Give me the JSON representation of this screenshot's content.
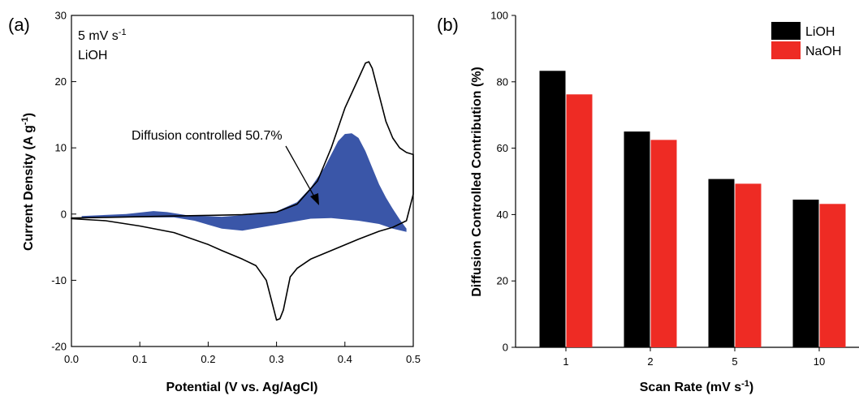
{
  "chart_data": [
    {
      "panel_label": "(a)",
      "type": "line",
      "xlabel": "Potential (V vs. Ag/AgCl)",
      "ylabel": "Current Density (A g",
      "ylabel_sup": "-1",
      "ylabel_close": ")",
      "xlim": [
        0.0,
        0.5
      ],
      "ylim": [
        -20,
        30
      ],
      "xticks": [
        "0.0",
        "0.1",
        "0.2",
        "0.3",
        "0.4",
        "0.5"
      ],
      "yticks": [
        "-20",
        "-10",
        "0",
        "10",
        "20",
        "30"
      ],
      "annotation_rate": "5 mV s",
      "annotation_rate_sup": "-1",
      "annotation_electrolyte": "LiOH",
      "annotation_diffusion": "Diffusion controlled 50.7%",
      "fill_color": "#3a56a8",
      "series": [
        {
          "style": "total-cv",
          "upper": [
            [
              0.0,
              -0.6
            ],
            [
              0.05,
              -0.5
            ],
            [
              0.1,
              -0.4
            ],
            [
              0.15,
              -0.3
            ],
            [
              0.2,
              -0.2
            ],
            [
              0.25,
              -0.1
            ],
            [
              0.3,
              0.3
            ],
            [
              0.33,
              1.5
            ],
            [
              0.36,
              5
            ],
            [
              0.38,
              10
            ],
            [
              0.4,
              16
            ],
            [
              0.42,
              20.5
            ],
            [
              0.43,
              22.8
            ],
            [
              0.435,
              23
            ],
            [
              0.44,
              22
            ],
            [
              0.45,
              18
            ],
            [
              0.46,
              14
            ],
            [
              0.47,
              11.5
            ],
            [
              0.48,
              10
            ],
            [
              0.49,
              9.3
            ],
            [
              0.5,
              9.0
            ]
          ],
          "lower": [
            [
              0.5,
              9.0
            ],
            [
              0.5,
              3
            ],
            [
              0.49,
              -1
            ],
            [
              0.47,
              -2
            ],
            [
              0.45,
              -2.6
            ],
            [
              0.42,
              -3.8
            ],
            [
              0.38,
              -5.5
            ],
            [
              0.35,
              -6.8
            ],
            [
              0.33,
              -8.2
            ],
            [
              0.32,
              -9.5
            ],
            [
              0.315,
              -12
            ],
            [
              0.31,
              -14.5
            ],
            [
              0.305,
              -15.8
            ],
            [
              0.3,
              -16
            ],
            [
              0.295,
              -14
            ],
            [
              0.285,
              -10
            ],
            [
              0.27,
              -7.8
            ],
            [
              0.25,
              -6.8
            ],
            [
              0.22,
              -5.5
            ],
            [
              0.2,
              -4.6
            ],
            [
              0.15,
              -2.8
            ],
            [
              0.1,
              -1.8
            ],
            [
              0.05,
              -1.0
            ],
            [
              0.0,
              -0.7
            ]
          ]
        },
        {
          "style": "diffusion-fill",
          "upper": [
            [
              0.015,
              -0.3
            ],
            [
              0.08,
              0.0
            ],
            [
              0.12,
              0.45
            ],
            [
              0.14,
              0.3
            ],
            [
              0.17,
              -0.2
            ],
            [
              0.22,
              -0.4
            ],
            [
              0.26,
              -0.1
            ],
            [
              0.3,
              0.4
            ],
            [
              0.33,
              1.8
            ],
            [
              0.35,
              4.0
            ],
            [
              0.37,
              7.0
            ],
            [
              0.39,
              11.0
            ],
            [
              0.4,
              12.1
            ],
            [
              0.41,
              12.2
            ],
            [
              0.42,
              11.5
            ],
            [
              0.43,
              9.5
            ],
            [
              0.44,
              7.0
            ],
            [
              0.45,
              4.5
            ],
            [
              0.46,
              2.5
            ],
            [
              0.47,
              0.8
            ],
            [
              0.48,
              -0.8
            ],
            [
              0.49,
              -2.2
            ]
          ],
          "lower": [
            [
              0.49,
              -2.7
            ],
            [
              0.47,
              -2.2
            ],
            [
              0.45,
              -1.5
            ],
            [
              0.42,
              -1.0
            ],
            [
              0.38,
              -0.6
            ],
            [
              0.35,
              -0.7
            ],
            [
              0.3,
              -1.6
            ],
            [
              0.25,
              -2.5
            ],
            [
              0.22,
              -2.2
            ],
            [
              0.18,
              -1.0
            ],
            [
              0.15,
              -0.5
            ],
            [
              0.1,
              -0.5
            ],
            [
              0.05,
              -0.55
            ],
            [
              0.015,
              -0.6
            ]
          ]
        }
      ]
    },
    {
      "panel_label": "(b)",
      "type": "bar",
      "xlabel": "Scan Rate (mV s",
      "xlabel_sup": "-1",
      "xlabel_close": ")",
      "ylabel": "Diffusion Controlled Contribution (%)",
      "ylim": [
        0,
        100
      ],
      "yticks": [
        "0",
        "20",
        "40",
        "60",
        "80",
        "100"
      ],
      "categories": [
        "1",
        "2",
        "5",
        "10"
      ],
      "series": [
        {
          "name": "LiOH",
          "color": "#000000",
          "values": [
            83.3,
            65.0,
            50.7,
            44.5
          ]
        },
        {
          "name": "NaOH",
          "color": "#ee2b24",
          "values": [
            76.2,
            62.5,
            49.3,
            43.2
          ]
        }
      ],
      "legend_position": "top-right"
    }
  ]
}
